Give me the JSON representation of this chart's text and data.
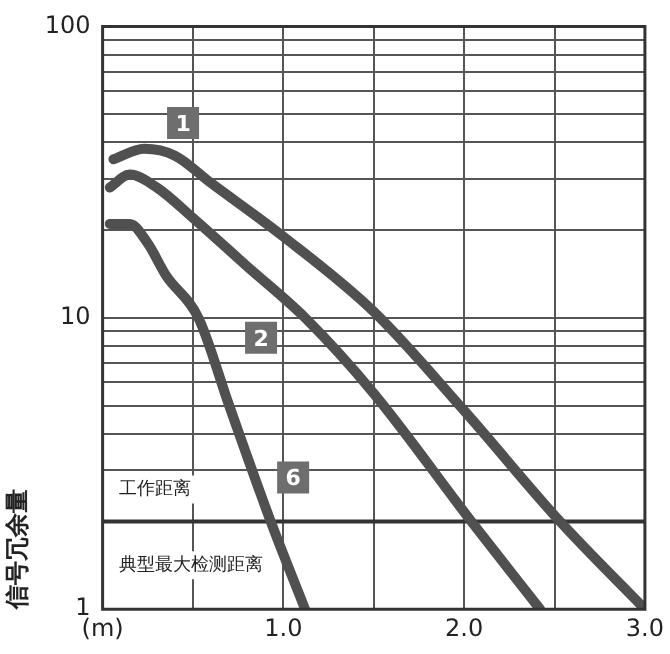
{
  "chart_data": {
    "type": "line",
    "ylabel": "信号冗余量",
    "log": "y",
    "grid": true,
    "legend": false,
    "marker": "none",
    "line_style": "solid",
    "xlim": [
      0,
      3
    ],
    "xticks": [
      {
        "value": 0,
        "label": "(m)"
      },
      {
        "value": 0.5,
        "label": null
      },
      {
        "value": 1,
        "label": "1.0"
      },
      {
        "value": 1.5,
        "label": null
      },
      {
        "value": 2,
        "label": "2.0"
      },
      {
        "value": 2.5,
        "label": null
      },
      {
        "value": 3,
        "label": "3.0"
      }
    ],
    "ylim": [
      1,
      100
    ],
    "yticks": [
      1,
      {
        "value": 2,
        "label": null
      },
      {
        "value": 3,
        "label": null
      },
      {
        "value": 4,
        "label": null
      },
      {
        "value": 5,
        "label": null
      },
      {
        "value": 6,
        "label": null
      },
      {
        "value": 7,
        "label": null
      },
      {
        "value": 8,
        "label": null
      },
      {
        "value": 9,
        "label": null
      },
      10,
      {
        "value": 20,
        "label": null
      },
      {
        "value": 30,
        "label": null
      },
      {
        "value": 40,
        "label": null
      },
      {
        "value": 50,
        "label": null
      },
      {
        "value": 60,
        "label": null
      },
      {
        "value": 70,
        "label": null
      },
      {
        "value": 80,
        "label": null
      },
      {
        "value": 90,
        "label": null
      },
      100
    ],
    "series": [
      {
        "name": "1",
        "color": "#505050",
        "x": [
          0.06,
          0.23,
          0.4,
          0.6,
          1.0,
          1.5,
          2.0,
          2.53,
          3.0
        ],
        "values": [
          35,
          38,
          36,
          29,
          19,
          10.5,
          4.8,
          2,
          1
        ]
      },
      {
        "name": "2",
        "color": "#505050",
        "x": [
          0.04,
          0.15,
          0.3,
          0.5,
          0.8,
          1.12,
          1.5,
          2.04,
          2.42
        ],
        "values": [
          28,
          31,
          28,
          22,
          15,
          10,
          5.5,
          2,
          1
        ]
      },
      {
        "name": "6",
        "color": "#505050",
        "x": [
          0.04,
          0.15,
          0.25,
          0.35,
          0.53,
          0.7,
          0.93,
          1.12
        ],
        "values": [
          21,
          21,
          18,
          14,
          10,
          5,
          2,
          1
        ]
      }
    ],
    "ref_lines": [
      {
        "axis": "y",
        "value": 2,
        "label": "工作距离"
      }
    ],
    "annotations": [
      "典型最大检测距离"
    ]
  }
}
